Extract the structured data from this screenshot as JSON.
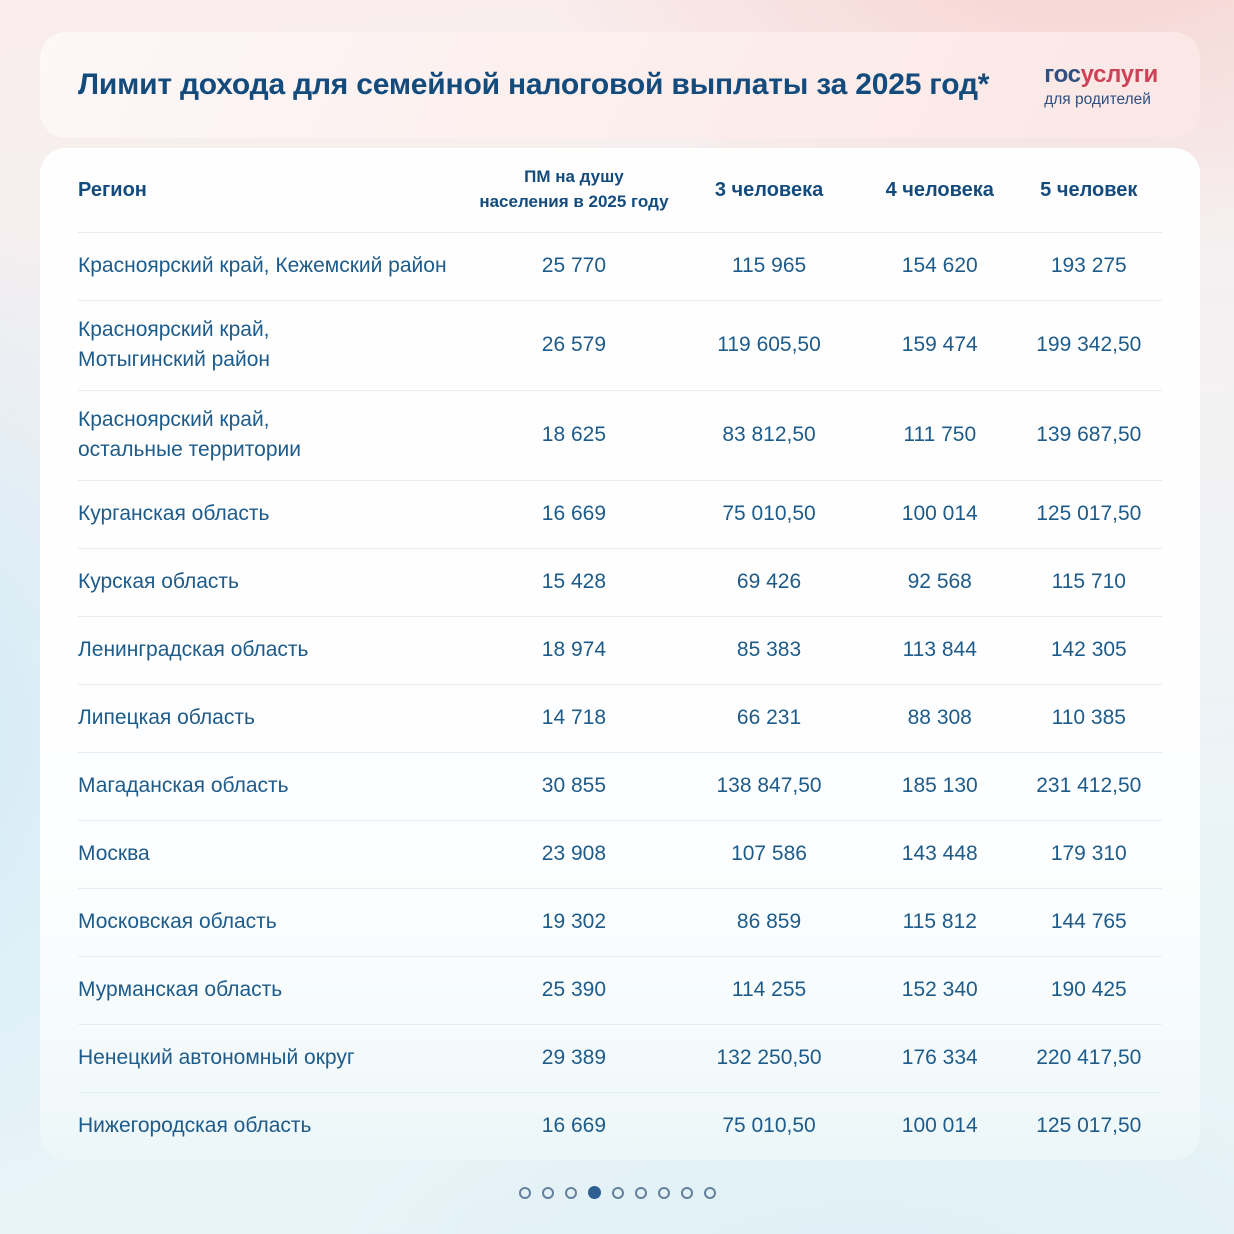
{
  "header": {
    "title": "Лимит дохода для семейной налоговой выплаты за 2025 год*",
    "logo": {
      "part_blue": "гос",
      "part_red": "услуги",
      "subtitle": "для родителей",
      "color_blue": "#32507f",
      "color_red": "#ce4257"
    }
  },
  "table": {
    "headers": [
      "Регион",
      "ПМ на душу\nнаселения в 2025 году",
      "3 человека",
      "4 человека",
      "5 человек"
    ],
    "rows": [
      {
        "region": "Красноярский край, Кежемский район",
        "pm": "25 770",
        "f3": "115 965",
        "f4": "154 620",
        "f5": "193 275"
      },
      {
        "region": "Красноярский край,\nМотыгинский район",
        "pm": "26 579",
        "f3": "119 605,50",
        "f4": "159 474",
        "f5": "199 342,50"
      },
      {
        "region": "Красноярский край,\nостальные территории",
        "pm": "18 625",
        "f3": "83 812,50",
        "f4": "111 750",
        "f5": "139 687,50"
      },
      {
        "region": "Курганская область",
        "pm": "16 669",
        "f3": "75 010,50",
        "f4": "100 014",
        "f5": "125 017,50"
      },
      {
        "region": "Курская область",
        "pm": "15 428",
        "f3": "69 426",
        "f4": "92 568",
        "f5": "115 710"
      },
      {
        "region": "Ленинградская область",
        "pm": "18 974",
        "f3": "85 383",
        "f4": "113 844",
        "f5": "142 305"
      },
      {
        "region": "Липецкая область",
        "pm": "14 718",
        "f3": "66 231",
        "f4": "88 308",
        "f5": "110 385"
      },
      {
        "region": "Магаданская область",
        "pm": "30 855",
        "f3": "138 847,50",
        "f4": "185 130",
        "f5": "231 412,50"
      },
      {
        "region": "Москва",
        "pm": "23 908",
        "f3": "107 586",
        "f4": "143 448",
        "f5": "179 310"
      },
      {
        "region": "Московская область",
        "pm": "19 302",
        "f3": "86 859",
        "f4": "115 812",
        "f5": "144 765"
      },
      {
        "region": "Мурманская область",
        "pm": "25 390",
        "f3": "114 255",
        "f4": "152 340",
        "f5": "190 425"
      },
      {
        "region": "Ненецкий автономный округ",
        "pm": "29 389",
        "f3": "132 250,50",
        "f4": "176 334",
        "f5": "220 417,50"
      },
      {
        "region": "Нижегородская область",
        "pm": "16 669",
        "f3": "75 010,50",
        "f4": "100 014",
        "f5": "125 017,50"
      }
    ]
  },
  "pagination": {
    "total": 9,
    "active_index": 3
  },
  "colors": {
    "title_text": "#144b7d",
    "row_text": "#1d5b8a",
    "divider": "#e4edf1",
    "dot_inactive_border": "#64809c",
    "dot_active_fill": "#2e5f94",
    "header_card_pink": "#fbe7e5",
    "background_top_pink": "#f6d2cf",
    "background_bottom_blue": "#e7f4f8"
  }
}
